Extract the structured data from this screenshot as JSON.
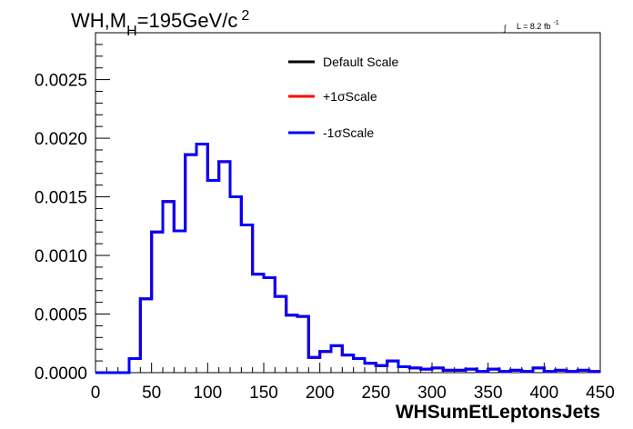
{
  "chart_data": {
    "type": "line",
    "title": {
      "main": "WH,M",
      "sub": "H",
      "rest": "=195GeV/c",
      "sup": "2"
    },
    "lumi": {
      "integral": "∫",
      "label": "L = 8.2 fb",
      "sup": "-1"
    },
    "xlabel": "WHSumEtLeptonsJets",
    "ylabel": "",
    "xlim": [
      0,
      450
    ],
    "ylim": [
      0,
      0.0029
    ],
    "x_ticks": [
      "0",
      "50",
      "100",
      "150",
      "200",
      "250",
      "300",
      "350",
      "400",
      "450"
    ],
    "y_ticks": [
      "0.0000",
      "0.0005",
      "0.0010",
      "0.0015",
      "0.0020",
      "0.0025"
    ],
    "grid": false,
    "legend_position": "top-center",
    "bin_edges": [
      0,
      10,
      20,
      30,
      40,
      50,
      60,
      70,
      80,
      90,
      100,
      110,
      120,
      130,
      140,
      150,
      160,
      170,
      180,
      190,
      200,
      210,
      220,
      230,
      240,
      250,
      260,
      270,
      280,
      290,
      300,
      310,
      320,
      330,
      340,
      350,
      360,
      370,
      380,
      390,
      400,
      410,
      420,
      430,
      440,
      450
    ],
    "series": [
      {
        "name": "Default Scale",
        "color": "#000000",
        "values": [
          0,
          0,
          0,
          0.00012,
          0.00063,
          0.0012,
          0.00146,
          0.00121,
          0.00186,
          0.00195,
          0.00164,
          0.0018,
          0.0015,
          0.00126,
          0.00084,
          0.00081,
          0.00065,
          0.00049,
          0.00048,
          0.00013,
          0.00018,
          0.00023,
          0.00015,
          0.00012,
          8e-05,
          6e-05,
          0.0001,
          5e-05,
          4e-05,
          3e-05,
          4e-05,
          2e-05,
          2e-05,
          3e-05,
          1e-05,
          3e-05,
          1e-05,
          2e-05,
          1e-05,
          4e-05,
          1e-05,
          2e-05,
          1e-05,
          2e-05,
          1e-05
        ]
      },
      {
        "name": "+1σScale",
        "color": "#ff0000",
        "values": [
          0,
          0,
          0,
          0.00012,
          0.00063,
          0.0012,
          0.00146,
          0.00121,
          0.00186,
          0.00195,
          0.00164,
          0.0018,
          0.0015,
          0.00126,
          0.00084,
          0.00081,
          0.00065,
          0.00049,
          0.00048,
          0.00013,
          0.00018,
          0.00023,
          0.00015,
          0.00012,
          8e-05,
          6e-05,
          0.0001,
          5e-05,
          4e-05,
          3e-05,
          4e-05,
          2e-05,
          2e-05,
          3e-05,
          1e-05,
          3e-05,
          1e-05,
          2e-05,
          1e-05,
          4e-05,
          1e-05,
          2e-05,
          1e-05,
          2e-05,
          1e-05
        ]
      },
      {
        "name": "-1σScale",
        "color": "#0000ff",
        "values": [
          0,
          0,
          0,
          0.00012,
          0.00063,
          0.0012,
          0.00146,
          0.00121,
          0.00186,
          0.00195,
          0.00164,
          0.0018,
          0.0015,
          0.00126,
          0.00084,
          0.00081,
          0.00065,
          0.00049,
          0.00048,
          0.00013,
          0.00018,
          0.00023,
          0.00015,
          0.00012,
          8e-05,
          6e-05,
          0.0001,
          5e-05,
          4e-05,
          3e-05,
          4e-05,
          2e-05,
          2e-05,
          3e-05,
          1e-05,
          3e-05,
          1e-05,
          2e-05,
          1e-05,
          4e-05,
          1e-05,
          2e-05,
          1e-05,
          2e-05,
          1e-05
        ]
      }
    ]
  }
}
